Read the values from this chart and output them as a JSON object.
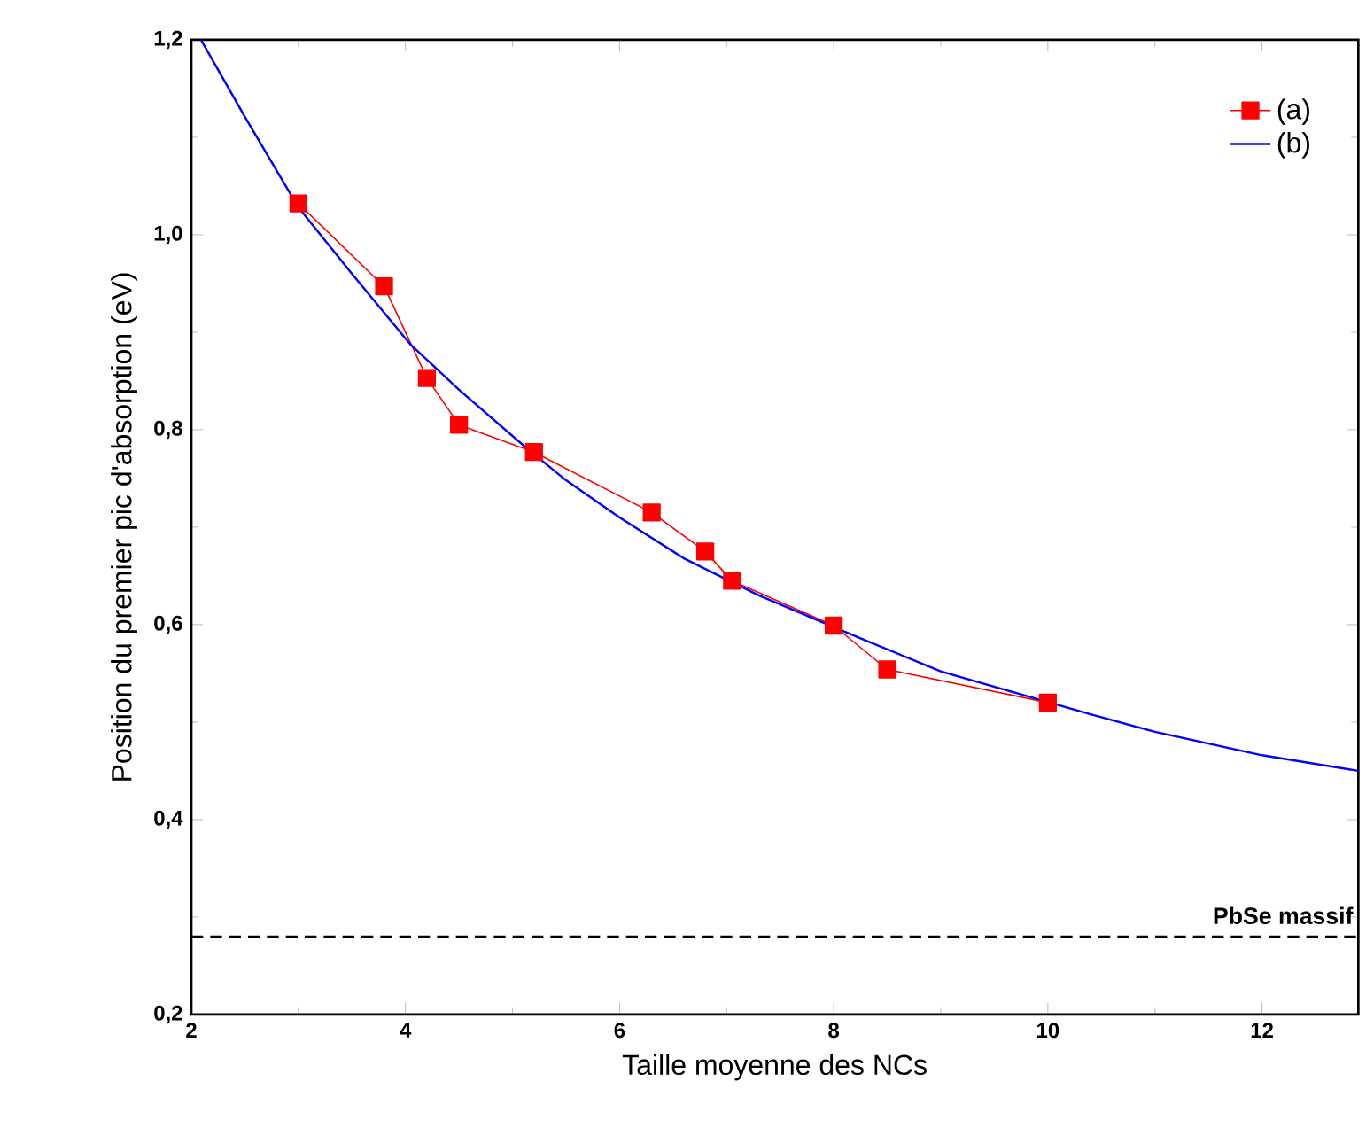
{
  "chart_data": {
    "type": "line",
    "xlabel": "Taille moyenne des NCs",
    "ylabel": "Position du premier pic d'absorption (eV)",
    "xlim": [
      2,
      12.9
    ],
    "ylim": [
      0.2,
      1.2
    ],
    "xticks": [
      2,
      4,
      6,
      8,
      10,
      12
    ],
    "yticks": [
      {
        "value": 0.2,
        "label": "0,2"
      },
      {
        "value": 0.4,
        "label": "0,4"
      },
      {
        "value": 0.6,
        "label": "0,6"
      },
      {
        "value": 0.8,
        "label": "0,8"
      },
      {
        "value": 1.0,
        "label": "1,0"
      },
      {
        "value": 1.2,
        "label": "1,2"
      }
    ],
    "legend": "top right",
    "series": [
      {
        "name": "(a)",
        "color": "#ff0000",
        "marker": "square",
        "x": [
          3,
          3.8,
          4.2,
          4.5,
          5.2,
          6.3,
          6.8,
          7.05,
          8,
          8.5,
          10
        ],
        "values": [
          1.032,
          0.947,
          0.853,
          0.805,
          0.777,
          0.715,
          0.675,
          0.645,
          0.599,
          0.554,
          0.52
        ]
      },
      {
        "name": "(b)",
        "color": "#0000ff",
        "marker": "none",
        "x": [
          2.09,
          2.5,
          3,
          3.5,
          4.05,
          4.5,
          5.1,
          5.5,
          6,
          6.6,
          7.3,
          8.25,
          9,
          10.4,
          11,
          12,
          12.9
        ],
        "values": [
          1.2,
          1.121,
          1.028,
          0.96,
          0.887,
          0.841,
          0.784,
          0.748,
          0.71,
          0.668,
          0.63,
          0.586,
          0.552,
          0.508,
          0.49,
          0.466,
          0.45
        ]
      }
    ],
    "ref_lines": [
      {
        "axis": "y",
        "value": 0.28,
        "label": "PbSe massif",
        "color": "#000000",
        "line_style": "dashed"
      }
    ]
  }
}
